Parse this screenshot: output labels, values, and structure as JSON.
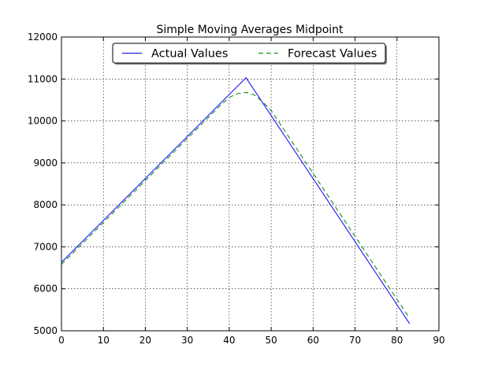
{
  "chart_data": {
    "type": "line",
    "title": "Simple Moving Averages Midpoint",
    "xlabel": "",
    "ylabel": "",
    "xlim": [
      0,
      90
    ],
    "ylim": [
      5000,
      12000
    ],
    "x_ticks": [
      0,
      10,
      20,
      30,
      40,
      50,
      60,
      70,
      80,
      90
    ],
    "y_ticks": [
      5000,
      6000,
      7000,
      8000,
      9000,
      10000,
      11000,
      12000
    ],
    "grid": true,
    "legend": {
      "placement": "top-center",
      "entries": [
        "Actual Values",
        "Forecast Values"
      ]
    },
    "series": [
      {
        "name": "Actual Values",
        "color": "#0000ff",
        "style": "solid",
        "points": [
          [
            0,
            6630
          ],
          [
            44,
            11030
          ],
          [
            83,
            5170
          ]
        ]
      },
      {
        "name": "Forecast Values",
        "color": "#008000",
        "style": "dashed",
        "points": [
          [
            0,
            6580
          ],
          [
            10,
            7580
          ],
          [
            20,
            8580
          ],
          [
            30,
            9580
          ],
          [
            38,
            10380
          ],
          [
            40,
            10560
          ],
          [
            42,
            10650
          ],
          [
            44,
            10680
          ],
          [
            46,
            10620
          ],
          [
            48,
            10450
          ],
          [
            50,
            10250
          ],
          [
            60,
            8750
          ],
          [
            70,
            7250
          ],
          [
            80,
            5750
          ],
          [
            83,
            5300
          ]
        ]
      }
    ]
  }
}
